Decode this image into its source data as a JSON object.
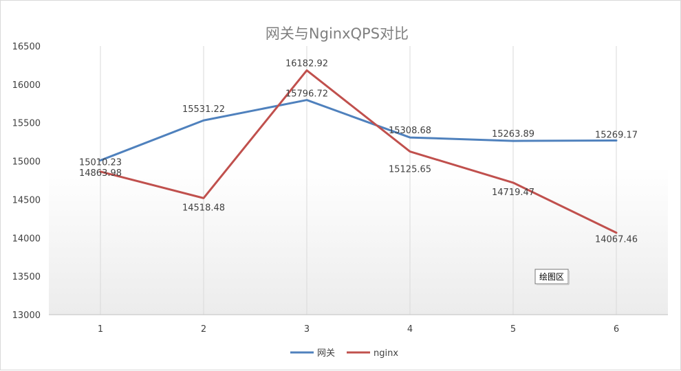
{
  "chart_data": {
    "type": "line",
    "title": "网关与NginxQPS对比",
    "categories": [
      "1",
      "2",
      "3",
      "4",
      "5",
      "6"
    ],
    "ylim": [
      13000,
      16500
    ],
    "yticks": [
      "16500",
      "16000",
      "15500",
      "15000",
      "14500",
      "14000",
      "13500",
      "13000"
    ],
    "ytick_values": [
      16500,
      16000,
      15500,
      15000,
      14500,
      14000,
      13500,
      13000
    ],
    "grid": "vertical",
    "legend_position": "bottom",
    "series": [
      {
        "name": "网关",
        "color": "#4f81bd",
        "values": [
          15010.23,
          15531.22,
          15796.72,
          15308.68,
          15263.89,
          15269.17
        ],
        "labels": [
          "15010.23",
          "15531.22",
          "15796.72",
          "15308.68",
          "15263.89",
          "15269.17"
        ]
      },
      {
        "name": "nginx",
        "color": "#c0504d",
        "values": [
          14863.98,
          14518.48,
          16182.92,
          15125.65,
          14719.47,
          14067.46
        ],
        "labels": [
          "14863.98",
          "14518.48",
          "16182.92",
          "15125.65",
          "14719.47",
          "14067.46"
        ]
      }
    ]
  },
  "tooltip": {
    "text": "绘图区"
  }
}
